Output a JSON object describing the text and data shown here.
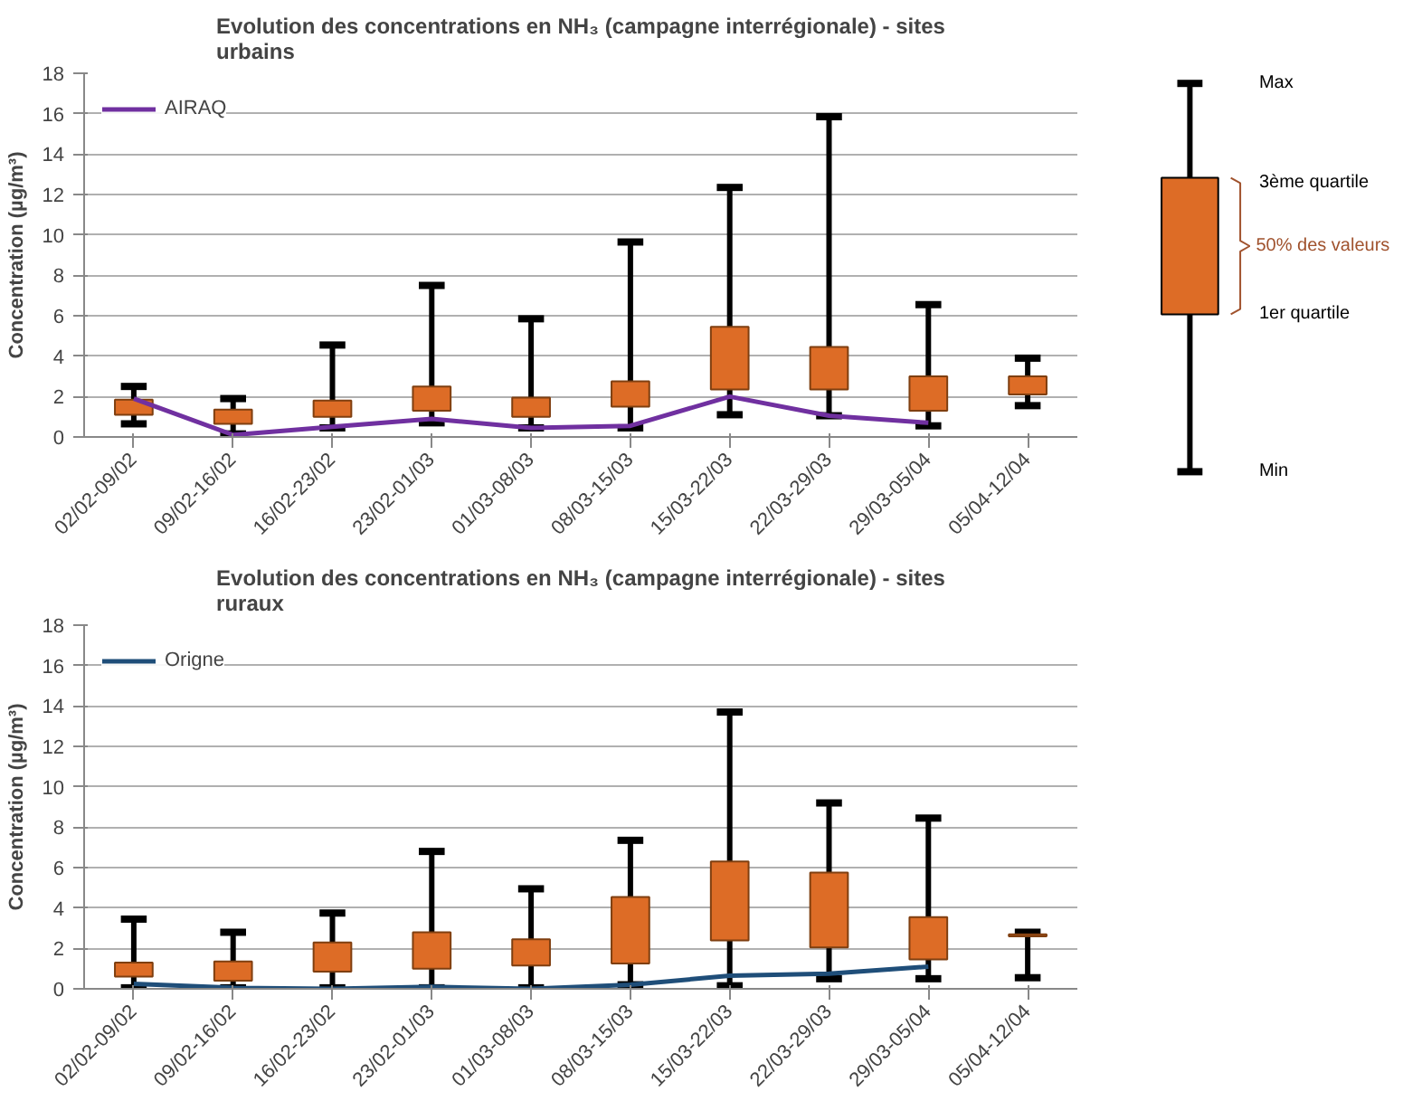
{
  "chart_data": [
    {
      "type": "box",
      "title": "Evolution des concentrations en NH₃ (campagne interrégionale) - sites urbains",
      "ylabel": "Concentration (µg/m³)",
      "categories": [
        "02/02-09/02",
        "09/02-16/02",
        "16/02-23/02",
        "23/02-01/03",
        "01/03-08/03",
        "08/03-15/03",
        "15/03-22/03",
        "22/03-29/03",
        "29/03-05/04",
        "05/04-12/04"
      ],
      "ylim": [
        0,
        18
      ],
      "yticks": [
        0,
        2,
        4,
        6,
        8,
        10,
        12,
        14,
        16,
        18
      ],
      "grid": "y",
      "legend": "top left",
      "series": [
        {
          "type": "box",
          "color": "#dd6c26",
          "boxes": [
            {
              "low": 0.65,
              "q1": 1.1,
              "q3": 1.85,
              "high": 2.5
            },
            {
              "low": 0.15,
              "q1": 0.65,
              "q3": 1.35,
              "high": 1.9
            },
            {
              "low": 0.45,
              "q1": 1.0,
              "q3": 1.8,
              "high": 4.55
            },
            {
              "low": 0.7,
              "q1": 1.3,
              "q3": 2.5,
              "high": 7.5
            },
            {
              "low": 0.45,
              "q1": 1.0,
              "q3": 1.95,
              "high": 5.85
            },
            {
              "low": 0.45,
              "q1": 1.5,
              "q3": 2.75,
              "high": 9.65
            },
            {
              "low": 1.1,
              "q1": 2.35,
              "q3": 5.45,
              "high": 12.35
            },
            {
              "low": 1.05,
              "q1": 2.35,
              "q3": 4.45,
              "high": 15.85
            },
            {
              "low": 0.55,
              "q1": 1.3,
              "q3": 3.0,
              "high": 6.55
            },
            {
              "low": 1.55,
              "q1": 2.1,
              "q3": 3.0,
              "high": 3.9
            }
          ]
        },
        {
          "type": "line",
          "name": "AIRAQ",
          "color": "#7030a0",
          "values": [
            1.9,
            0.1,
            0.5,
            0.9,
            0.45,
            0.55,
            2.0,
            1.05,
            0.7,
            null
          ]
        }
      ]
    },
    {
      "type": "box",
      "title": "Evolution des concentrations en NH₃ (campagne interrégionale) - sites ruraux",
      "ylabel": "Concentration (µg/m³)",
      "categories": [
        "02/02-09/02",
        "09/02-16/02",
        "16/02-23/02",
        "23/02-01/03",
        "01/03-08/03",
        "08/03-15/03",
        "15/03-22/03",
        "22/03-29/03",
        "29/03-05/04",
        "05/04-12/04"
      ],
      "ylim": [
        0,
        18
      ],
      "yticks": [
        0,
        2,
        4,
        6,
        8,
        10,
        12,
        14,
        16,
        18
      ],
      "grid": "y",
      "legend": "top left",
      "series": [
        {
          "type": "box",
          "color": "#dd6c26",
          "boxes": [
            {
              "low": 0.05,
              "q1": 0.6,
              "q3": 1.3,
              "high": 3.45
            },
            {
              "low": 0.05,
              "q1": 0.4,
              "q3": 1.35,
              "high": 2.8
            },
            {
              "low": 0.05,
              "q1": 0.85,
              "q3": 2.3,
              "high": 3.75
            },
            {
              "low": 0.05,
              "q1": 1.0,
              "q3": 2.8,
              "high": 6.8
            },
            {
              "low": 0.05,
              "q1": 1.15,
              "q3": 2.45,
              "high": 4.95
            },
            {
              "low": 0.2,
              "q1": 1.25,
              "q3": 4.55,
              "high": 7.35
            },
            {
              "low": 0.15,
              "q1": 2.4,
              "q3": 6.3,
              "high": 13.7
            },
            {
              "low": 0.5,
              "q1": 2.05,
              "q3": 5.75,
              "high": 9.2
            },
            {
              "low": 0.5,
              "q1": 1.45,
              "q3": 3.55,
              "high": 8.45
            },
            {
              "low": 0.55,
              "q1": 2.6,
              "q3": 2.7,
              "high": 2.8
            }
          ]
        },
        {
          "type": "line",
          "name": "Origne",
          "color": "#1f4e79",
          "values": [
            0.25,
            0.05,
            0.0,
            0.1,
            0.0,
            0.2,
            0.65,
            0.75,
            1.1,
            null
          ]
        }
      ]
    },
    {
      "type": "other",
      "annotations": [
        "Max",
        "3ème quartile",
        "50% des valeurs",
        "1er quartile",
        "Min"
      ]
    }
  ]
}
